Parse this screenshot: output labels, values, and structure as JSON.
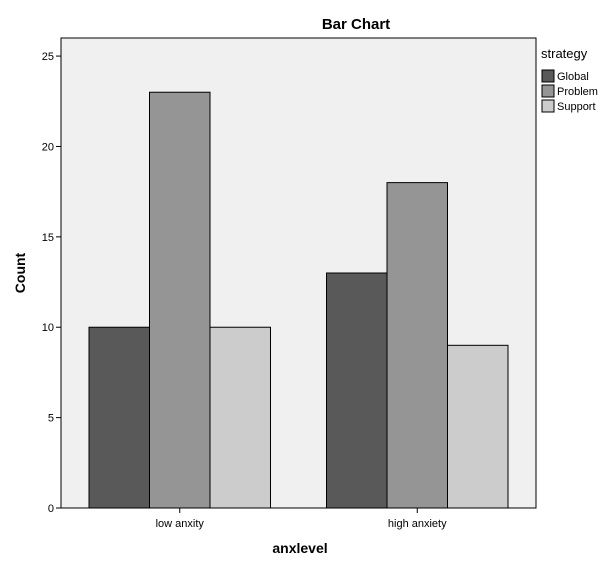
{
  "chart_data": {
    "type": "bar",
    "title": "Bar Chart",
    "xlabel": "anxlevel",
    "ylabel": "Count",
    "categories": [
      "low anxity",
      "high anxiety"
    ],
    "series": [
      {
        "name": "Global",
        "values": [
          10,
          13
        ],
        "color": "#595959"
      },
      {
        "name": "Problem",
        "values": [
          23,
          18
        ],
        "color": "#959595"
      },
      {
        "name": "Support",
        "values": [
          10,
          9
        ],
        "color": "#cccccc"
      }
    ],
    "ylim": [
      0,
      26
    ],
    "yticks": [
      0,
      5,
      10,
      15,
      20,
      25
    ],
    "grid": false,
    "legend": {
      "title": "strategy",
      "placement": "right"
    },
    "plot_background": "#f0f0f0"
  }
}
